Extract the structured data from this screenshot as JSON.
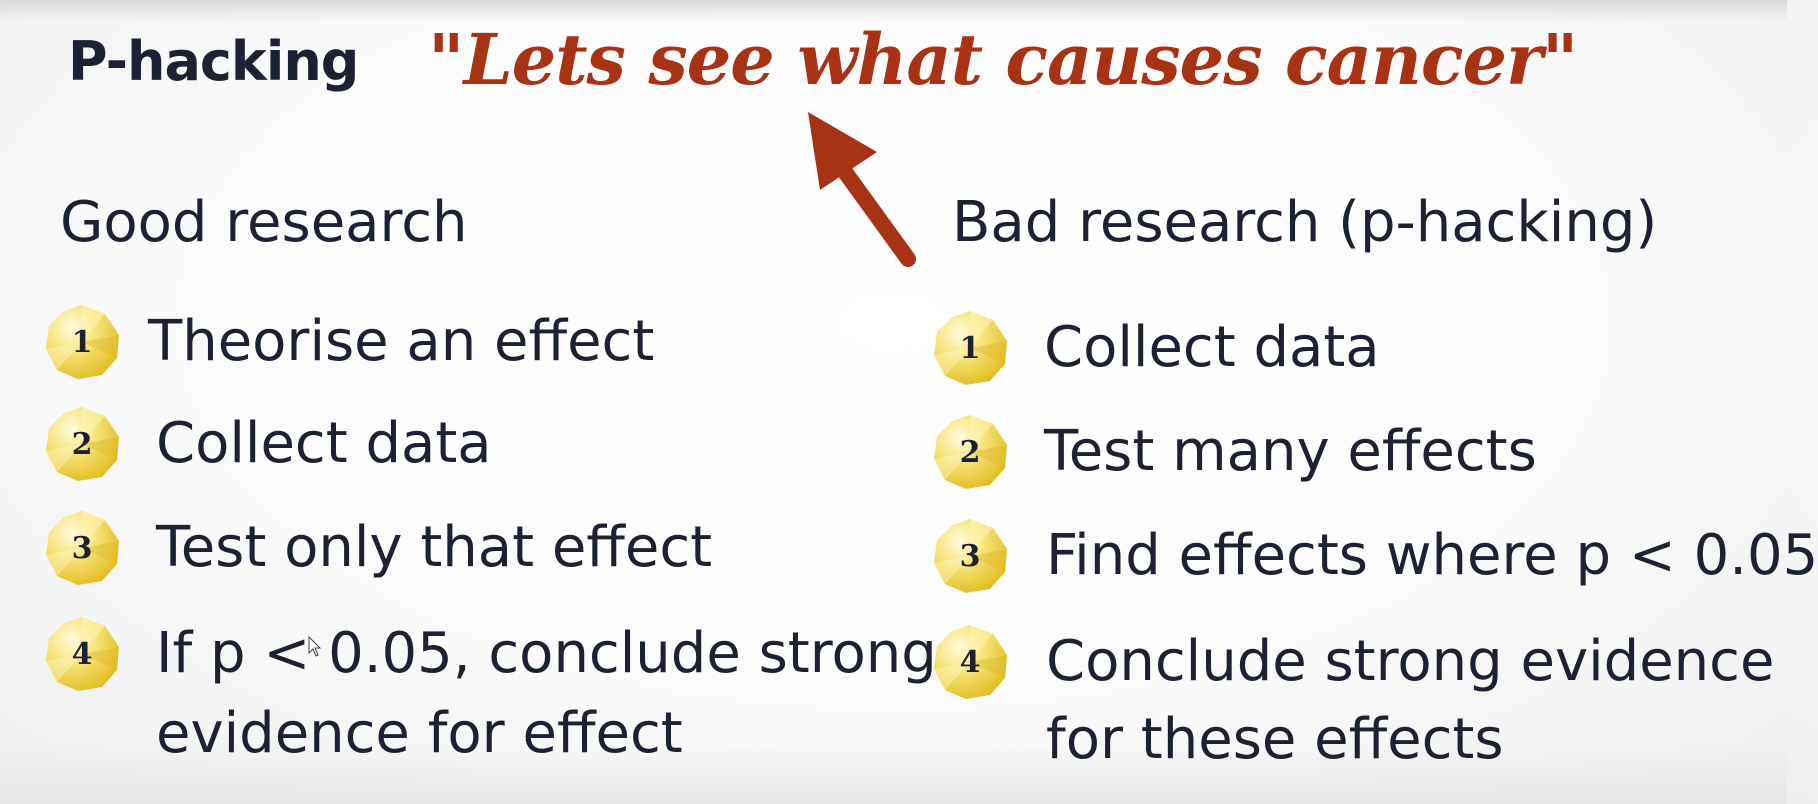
{
  "slide": {
    "title": "P-hacking",
    "quote": "\"Lets see what causes cancer\""
  },
  "colors": {
    "accent": "#a83214",
    "text": "#1c2233",
    "badge_light": "#fbf3b8",
    "badge_dark": "#e8c52a"
  },
  "good": {
    "heading": "Good research",
    "steps": [
      {
        "num": "1",
        "text": "Theorise an effect"
      },
      {
        "num": "2",
        "text": "Collect data"
      },
      {
        "num": "3",
        "text": "Test only that effect"
      },
      {
        "num": "4",
        "text_line1": "If p < 0.05, conclude strong",
        "text_line2": "evidence for effect"
      }
    ]
  },
  "bad": {
    "heading": "Bad research (p-hacking)",
    "steps": [
      {
        "num": "1",
        "text": "Collect data"
      },
      {
        "num": "2",
        "text": "Test many effects"
      },
      {
        "num": "3",
        "text": "Find effects where p < 0.05"
      },
      {
        "num": "4",
        "text_line1": "Conclude strong evidence",
        "text_line2": "for these effects"
      }
    ]
  }
}
